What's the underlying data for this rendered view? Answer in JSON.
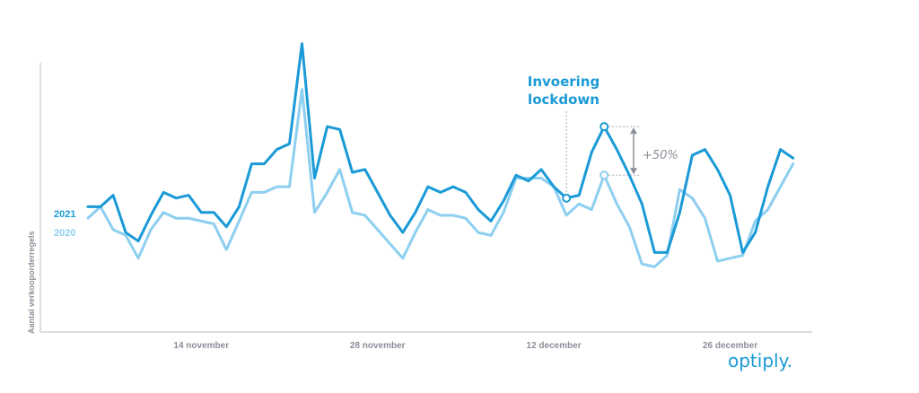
{
  "chart_data": {
    "type": "line",
    "ylabel": "Aantal verkooporderregels",
    "xlabel": "",
    "x_ticks": [
      {
        "label": "14 november",
        "day": 9
      },
      {
        "label": "28 november",
        "day": 23
      },
      {
        "label": "12 december",
        "day": 37
      },
      {
        "label": "26 december",
        "day": 51
      }
    ],
    "ylim": [
      0,
      100
    ],
    "series": [
      {
        "name": "2021",
        "color": "#1a9ad6",
        "values": [
          40,
          40,
          44,
          31,
          28,
          37,
          45,
          43,
          44,
          38,
          38,
          33,
          40,
          55,
          55,
          60,
          62,
          97,
          50,
          68,
          67,
          52,
          53,
          45,
          37,
          31,
          38,
          47,
          45,
          47,
          45,
          39,
          35,
          42,
          51,
          49,
          53,
          47,
          43,
          44,
          59,
          68,
          60,
          51,
          41,
          24,
          24,
          38,
          58,
          60,
          53,
          44,
          24,
          31,
          47,
          60,
          57
        ]
      },
      {
        "name": "2020",
        "color": "#8dcff0",
        "values": [
          36,
          40,
          32,
          30,
          22,
          32,
          38,
          36,
          36,
          35,
          34,
          25,
          35,
          45,
          45,
          47,
          47,
          81,
          38,
          45,
          53,
          38,
          37,
          32,
          27,
          22,
          31,
          39,
          37,
          37,
          36,
          31,
          30,
          38,
          50,
          50,
          50,
          47,
          37,
          41,
          39,
          51,
          41,
          33,
          20,
          19,
          23,
          46,
          43,
          36,
          21,
          22,
          23,
          35,
          39,
          47,
          55
        ]
      }
    ],
    "annotations": {
      "lockdown_label_line1": "Invoering",
      "lockdown_label_line2": "lockdown",
      "lockdown_day": 38,
      "increase_label": "+50%",
      "increase_day": 41
    },
    "legend": [
      "2021",
      "2020"
    ],
    "legend_position": "left"
  },
  "brand": {
    "logo_text": "optiply.",
    "color": "#1a9ad6"
  }
}
